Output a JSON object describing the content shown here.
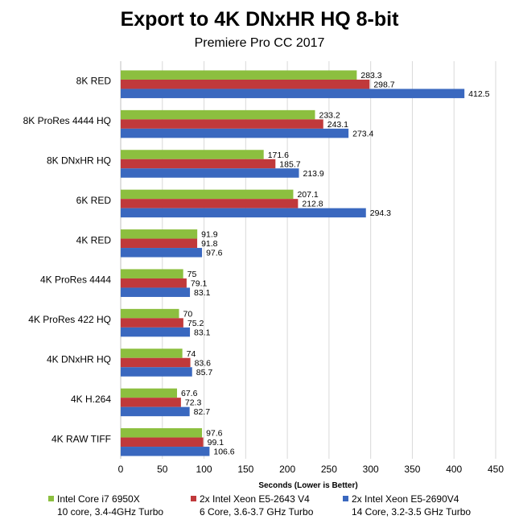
{
  "chart_data": {
    "type": "bar",
    "orientation": "horizontal",
    "title": "Export to 4K DNxHR HQ 8-bit",
    "subtitle": "Premiere Pro CC 2017",
    "xlabel": "Seconds (Lower is Better)",
    "ylabel": "",
    "xlim": [
      0,
      450
    ],
    "xticks": [
      0,
      50,
      100,
      150,
      200,
      250,
      300,
      350,
      400,
      450
    ],
    "grid": true,
    "legend_position": "bottom",
    "categories": [
      "8K RED",
      "8K ProRes 4444 HQ",
      "8K DNxHR HQ",
      "6K RED",
      "4K RED",
      "4K ProRes 4444",
      "4K ProRes 422 HQ",
      "4K DNxHR HQ",
      "4K H.264",
      "4K RAW TIFF"
    ],
    "series": [
      {
        "name": "Intel Core i7 6950X",
        "detail": "10 core, 3.4-4GHz Turbo",
        "color": "#8cbf3f",
        "values": [
          283.3,
          233.2,
          171.6,
          207.1,
          91.9,
          75,
          70,
          74,
          67.6,
          97.6
        ]
      },
      {
        "name": "2x Intel Xeon E5-2643 V4",
        "detail": "6 Core, 3.6-3.7 GHz Turbo",
        "color": "#c0393b",
        "values": [
          298.7,
          243.1,
          185.7,
          212.8,
          91.8,
          79.1,
          75.2,
          83.6,
          72.3,
          99.1
        ]
      },
      {
        "name": "2x Intel Xeon E5-2690V4",
        "detail": "14 Core, 3.2-3.5 GHz Turbo",
        "color": "#3a68bf",
        "values": [
          412.5,
          273.4,
          213.9,
          294.3,
          97.6,
          83.1,
          83.1,
          85.7,
          82.7,
          106.6
        ]
      }
    ]
  }
}
